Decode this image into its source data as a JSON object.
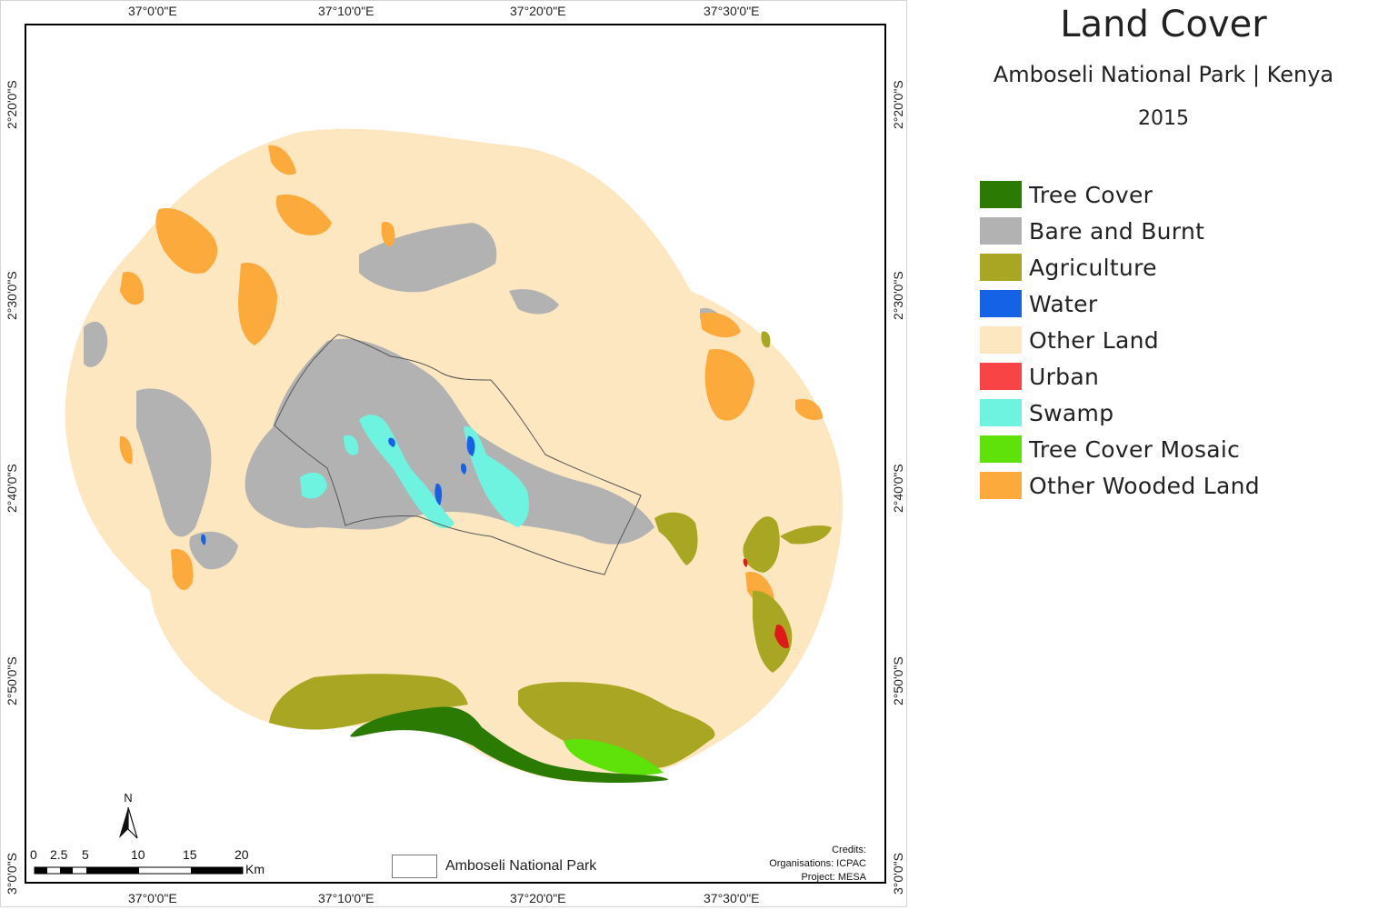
{
  "title": "Land Cover",
  "subtitle": "Amboseli National Park | Kenya",
  "year": "2015",
  "legend": [
    {
      "label": "Tree Cover",
      "color": "#2a7a04"
    },
    {
      "label": "Bare and Burnt",
      "color": "#b2b2b2"
    },
    {
      "label": "Agriculture",
      "color": "#a8a622"
    },
    {
      "label": "Water",
      "color": "#1662e6"
    },
    {
      "label": "Other Land",
      "color": "#fde7c0"
    },
    {
      "label": "Urban",
      "color": "#f84444"
    },
    {
      "label": "Swamp",
      "color": "#6ef3e0"
    },
    {
      "label": "Tree Cover Mosaic",
      "color": "#5ee20a"
    },
    {
      "label": "Other Wooded Land",
      "color": "#fdaa3c"
    }
  ],
  "grid": {
    "top_labels": [
      "37°0'0\"E",
      "37°10'0\"E",
      "37°20'0\"E",
      "37°30'0\"E"
    ],
    "bottom_labels": [
      "37°0'0\"E",
      "37°10'0\"E",
      "37°20'0\"E",
      "37°30'0\"E"
    ],
    "left_labels": [
      "2°20'0\"S",
      "2°30'0\"S",
      "2°40'0\"S",
      "2°50'0\"S",
      "3°0'0\"S"
    ],
    "right_labels": [
      "2°20'0\"S",
      "2°30'0\"S",
      "2°40'0\"S",
      "2°50'0\"S",
      "3°0'0\"S"
    ]
  },
  "north_arrow": "N",
  "scale_bar": {
    "ticks": [
      "0",
      "2.5",
      "5",
      "10",
      "15",
      "20"
    ],
    "unit": "Km"
  },
  "park_legend": "Amboseli National Park",
  "credits": {
    "heading": "Credits:",
    "organisations": "Organisations: ICPAC",
    "project": "Project: MESA"
  }
}
